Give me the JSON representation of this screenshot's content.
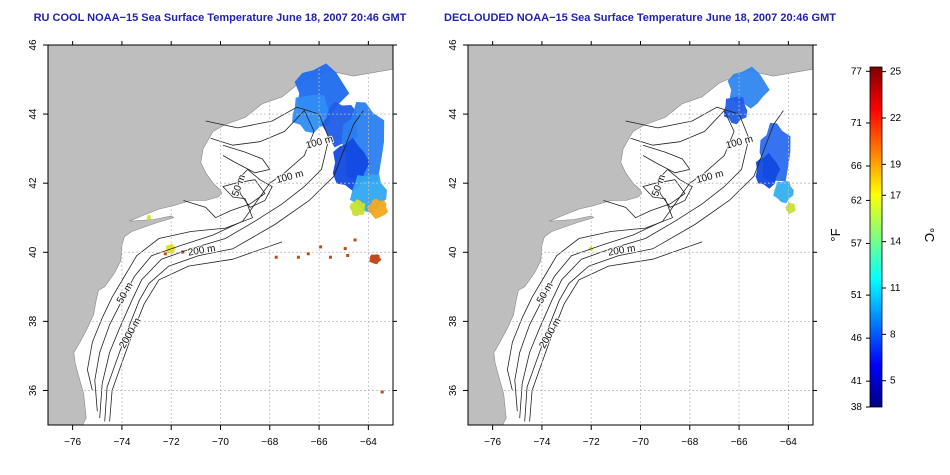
{
  "maps": [
    {
      "title": "RU COOL NOAA−15 Sea Surface Temperature June 18, 2007 20:46 GMT",
      "contour_labels": [
        "100 m",
        "100 m",
        "50 m",
        "200 m",
        "50 m",
        "2000 m"
      ]
    },
    {
      "title": "DECLOUDED NOAA−15 Sea Surface Temperature June 18, 2007 20:46 GMT",
      "contour_labels": [
        "100 m",
        "100 m",
        "50 m",
        "200 m",
        "50 m",
        "2000 m"
      ]
    }
  ],
  "axes": {
    "x_ticks": [
      "−76",
      "−74",
      "−72",
      "−70",
      "−68",
      "−66",
      "−64"
    ],
    "y_ticks": [
      "46",
      "44",
      "42",
      "40",
      "38",
      "36"
    ],
    "lon_range": [
      -77,
      -63
    ],
    "lat_range": [
      35,
      46
    ]
  },
  "colorbar": {
    "unit_f": "°F",
    "unit_c": "°C",
    "f_ticks": [
      "77",
      "71",
      "66",
      "62",
      "57",
      "51",
      "46",
      "41",
      "38"
    ],
    "c_ticks": [
      "25",
      "22",
      "19",
      "17",
      "14",
      "11",
      "8",
      "5"
    ],
    "colors": [
      "#00007f",
      "#0000ff",
      "#007fff",
      "#00ffff",
      "#7fff7f",
      "#ffff00",
      "#ff7f00",
      "#ff0000",
      "#7f0000"
    ]
  },
  "colors": {
    "land": "#bebebe",
    "ocean": "#ffffff",
    "title": "#2222aa",
    "grid": "#bbbbbb"
  }
}
